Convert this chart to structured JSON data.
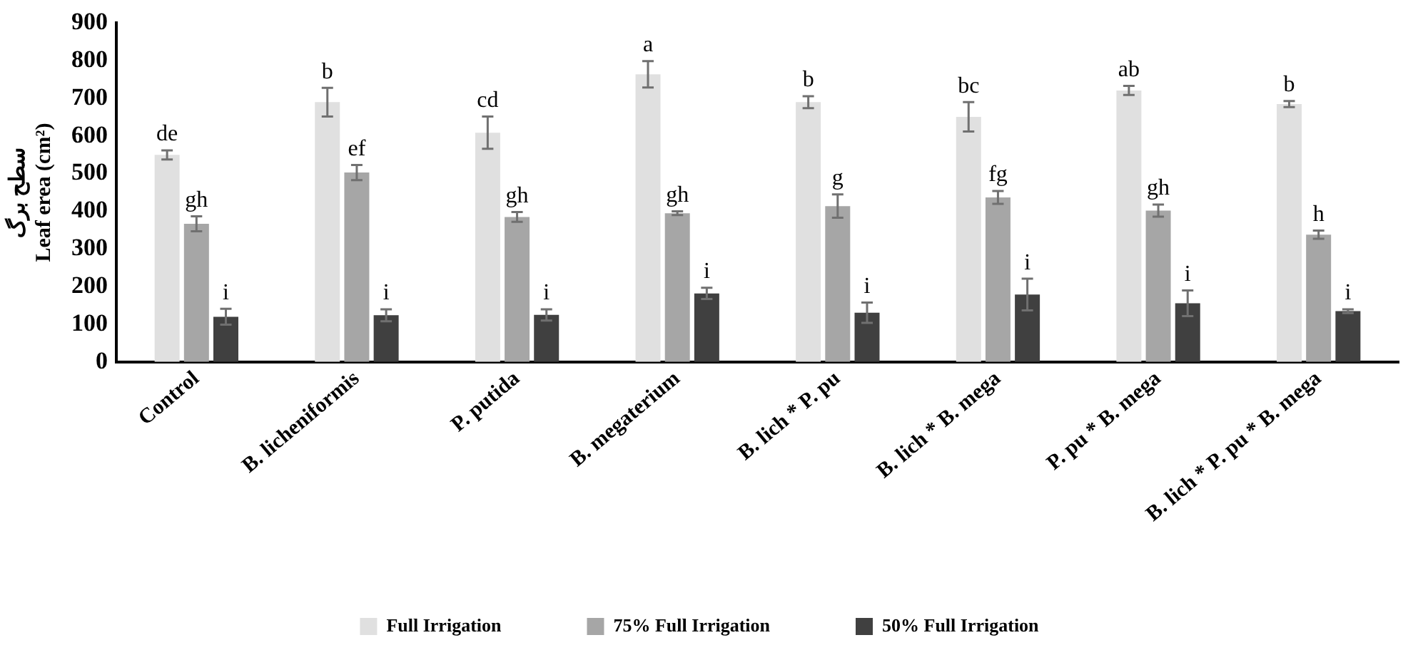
{
  "chart_data": {
    "type": "bar",
    "ylabel": "سطح برگ\nLeaf erea (cm²)",
    "categories": [
      "Control",
      "B. licheniformis",
      "P. putida",
      "B. megaterium",
      "B. lich * P. pu",
      "B. lich * B. mega",
      "P. pu * B. mega",
      "B. lich * P. pu * B. mega"
    ],
    "series": [
      {
        "name": "Full Irrigation",
        "color": "#e0e0e0",
        "values": [
          550,
          690,
          609,
          764,
          690,
          651,
          721,
          685
        ],
        "errors": [
          12,
          38,
          43,
          35,
          16,
          39,
          12,
          8
        ],
        "value_labels": [
          "de",
          "b",
          "cd",
          "a",
          "b",
          "bc",
          "ab",
          "b"
        ]
      },
      {
        "name": "75% Full Irrigation",
        "color": "#a6a6a6",
        "values": [
          367,
          503,
          385,
          395,
          414,
          437,
          402,
          338
        ],
        "errors": [
          20,
          20,
          13,
          5,
          31,
          17,
          16,
          11
        ],
        "value_labels": [
          "gh",
          "ef",
          "gh",
          "gh",
          "g",
          "fg",
          "gh",
          "h"
        ]
      },
      {
        "name": "50% Full Irrigation",
        "color": "#404040",
        "values": [
          120,
          124,
          125,
          182,
          131,
          179,
          156,
          135
        ],
        "errors": [
          21,
          16,
          15,
          15,
          27,
          42,
          34,
          5
        ],
        "value_labels": [
          "i",
          "i",
          "i",
          "i",
          "i",
          "i",
          "i",
          "i"
        ]
      }
    ],
    "ylim": [
      0,
      900
    ],
    "yticks": [
      0,
      100,
      200,
      300,
      400,
      500,
      600,
      700,
      800,
      900
    ],
    "grid": false,
    "legend": "bottom"
  }
}
